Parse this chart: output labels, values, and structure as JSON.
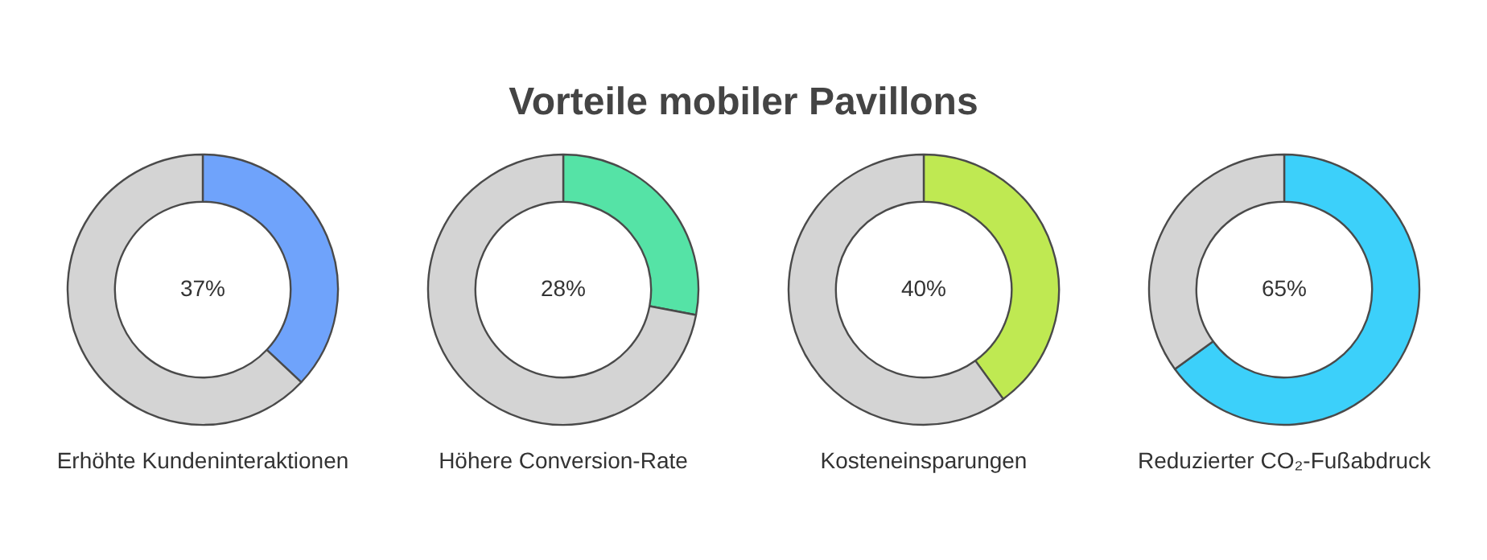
{
  "chart_data": [
    {
      "type": "donut",
      "title": "Vorteile mobiler Pavillons",
      "xlabel": "Erhöhte Kundeninteraktionen",
      "categories": [
        null,
        null
      ],
      "values": [
        37,
        63
      ],
      "colors": [
        "#6fa3fb",
        "#d4d4d4"
      ],
      "value_labels": [
        "37%",
        null
      ]
    },
    {
      "type": "donut",
      "xlabel": "Höhere Conversion-Rate",
      "categories": [
        null,
        null
      ],
      "values": [
        28,
        72
      ],
      "colors": [
        "#55e3a6",
        "#d4d4d4"
      ],
      "value_labels": [
        "28%",
        null
      ]
    },
    {
      "type": "donut",
      "xlabel": "Kosteneinsparungen",
      "categories": [
        null,
        null
      ],
      "values": [
        40,
        60
      ],
      "colors": [
        "#bfe952",
        "#d4d4d4"
      ],
      "value_labels": [
        "40%",
        null
      ]
    },
    {
      "type": "donut",
      "xlabel": "Reduzierter CO₂-Fußabdruck",
      "categories": [
        null,
        null
      ],
      "values": [
        65,
        35
      ],
      "colors": [
        "#3cd0fa",
        "#d4d4d4"
      ],
      "value_labels": [
        "65%",
        null
      ]
    }
  ]
}
